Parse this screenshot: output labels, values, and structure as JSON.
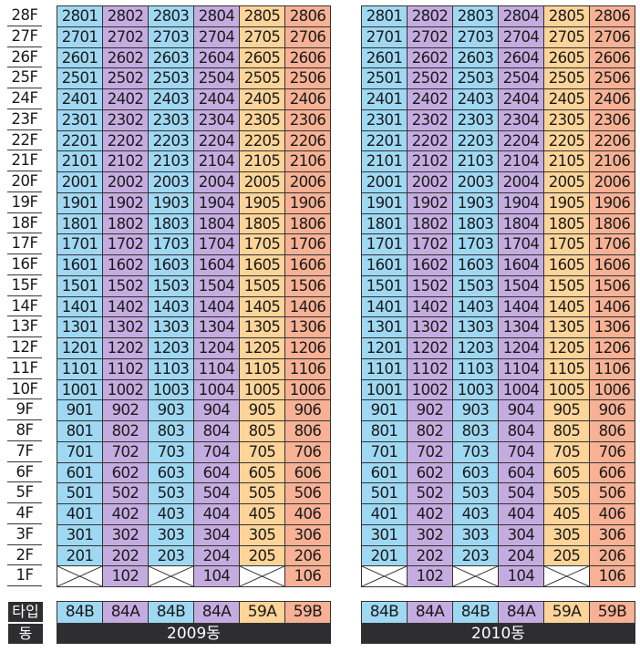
{
  "colors": {
    "84B": "#9fd8f3",
    "84A": "#c5ace0",
    "59A": "#fed498",
    "59B": "#f8b194",
    "header_bg": "#2e2e30"
  },
  "labels": {
    "type": "타입",
    "dong": "동"
  },
  "floors": [
    "28F",
    "27F",
    "26F",
    "25F",
    "24F",
    "23F",
    "22F",
    "21F",
    "20F",
    "19F",
    "18F",
    "17F",
    "16F",
    "15F",
    "14F",
    "13F",
    "12F",
    "11F",
    "10F",
    "9F",
    "8F",
    "7F",
    "6F",
    "5F",
    "4F",
    "3F",
    "2F",
    "1F"
  ],
  "unit_lines": [
    "01",
    "02",
    "03",
    "04",
    "05",
    "06"
  ],
  "first_floor_units": [
    "",
    "102",
    "",
    "104",
    "",
    "106"
  ],
  "buildings": [
    {
      "name": "2009동",
      "types": [
        "84B",
        "84A",
        "84B",
        "84A",
        "59A",
        "59B"
      ]
    },
    {
      "name": "2010동",
      "types": [
        "84B",
        "84A",
        "84B",
        "84A",
        "59A",
        "59B"
      ]
    }
  ]
}
